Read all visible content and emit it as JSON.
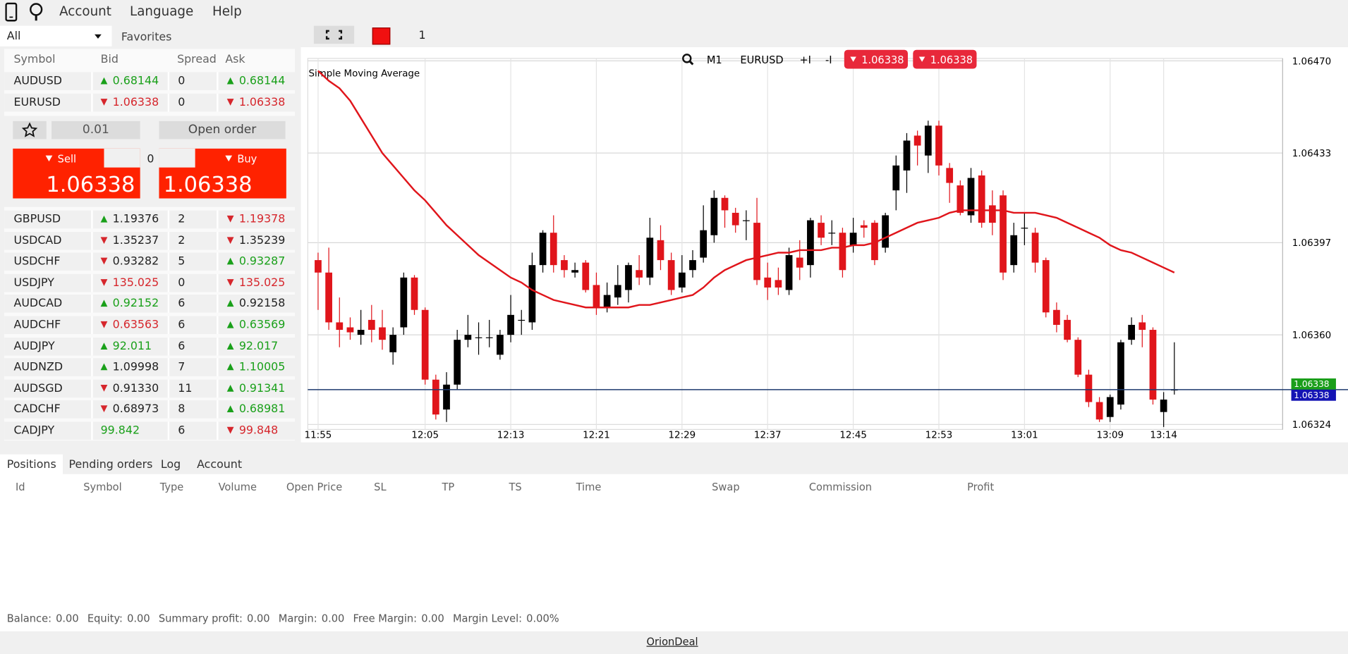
{
  "menu": [
    "Account",
    "Language",
    "Help"
  ],
  "toolbar": {
    "symbol_filter": "All",
    "favorites": "Favorites",
    "count": "1"
  },
  "watchlist": {
    "columns": [
      "Symbol",
      "Bid",
      "Spread",
      "Ask"
    ],
    "rows": [
      {
        "symbol": "AUDUSD",
        "bid": "0.68144",
        "bid_dir": "up",
        "bid_color": "#1aa01a",
        "spread": "0",
        "ask": "0.68144",
        "ask_dir": "up",
        "ask_color": "#1aa01a"
      },
      {
        "symbol": "EURUSD",
        "bid": "1.06338",
        "bid_dir": "down",
        "bid_color": "#d6262c",
        "spread": "0",
        "ask": "1.06338",
        "ask_dir": "down",
        "ask_color": "#d6262c"
      },
      {
        "symbol": "GBPUSD",
        "bid": "1.19376",
        "bid_dir": "up",
        "bid_color": "#222222",
        "spread": "2",
        "ask": "1.19378",
        "ask_dir": "down",
        "ask_color": "#d6262c"
      },
      {
        "symbol": "USDCAD",
        "bid": "1.35237",
        "bid_dir": "down",
        "bid_color": "#222222",
        "spread": "2",
        "ask": "1.35239",
        "ask_dir": "down",
        "ask_color": "#222222"
      },
      {
        "symbol": "USDCHF",
        "bid": "0.93282",
        "bid_dir": "down",
        "bid_color": "#222222",
        "spread": "5",
        "ask": "0.93287",
        "ask_dir": "up",
        "ask_color": "#1aa01a"
      },
      {
        "symbol": "USDJPY",
        "bid": "135.025",
        "bid_dir": "down",
        "bid_color": "#d6262c",
        "spread": "0",
        "ask": "135.025",
        "ask_dir": "down",
        "ask_color": "#d6262c"
      },
      {
        "symbol": "AUDCAD",
        "bid": "0.92152",
        "bid_dir": "up",
        "bid_color": "#1aa01a",
        "spread": "6",
        "ask": "0.92158",
        "ask_dir": "up",
        "ask_color": "#222222"
      },
      {
        "symbol": "AUDCHF",
        "bid": "0.63563",
        "bid_dir": "down",
        "bid_color": "#d6262c",
        "spread": "6",
        "ask": "0.63569",
        "ask_dir": "up",
        "ask_color": "#1aa01a"
      },
      {
        "symbol": "AUDJPY",
        "bid": "92.011",
        "bid_dir": "up",
        "bid_color": "#1aa01a",
        "spread": "6",
        "ask": "92.017",
        "ask_dir": "up",
        "ask_color": "#1aa01a"
      },
      {
        "symbol": "AUDNZD",
        "bid": "1.09998",
        "bid_dir": "up",
        "bid_color": "#222222",
        "spread": "7",
        "ask": "1.10005",
        "ask_dir": "up",
        "ask_color": "#1aa01a"
      },
      {
        "symbol": "AUDSGD",
        "bid": "0.91330",
        "bid_dir": "down",
        "bid_color": "#222222",
        "spread": "11",
        "ask": "0.91341",
        "ask_dir": "up",
        "ask_color": "#1aa01a"
      },
      {
        "symbol": "CADCHF",
        "bid": "0.68973",
        "bid_dir": "down",
        "bid_color": "#222222",
        "spread": "8",
        "ask": "0.68981",
        "ask_dir": "up",
        "ask_color": "#1aa01a"
      },
      {
        "symbol": "CADJPY",
        "bid": "99.842",
        "bid_dir": "none",
        "bid_color": "#1aa01a",
        "spread": "6",
        "ask": "99.848",
        "ask_dir": "down",
        "ask_color": "#d6262c"
      }
    ]
  },
  "order_panel": {
    "volume": "0.01",
    "open_order": "Open order",
    "sell": "Sell",
    "buy": "Buy",
    "sell_price": "1.06338",
    "buy_price": "1.06338",
    "spread": "0"
  },
  "chart_toolbar": {
    "timeframe": "M1",
    "symbol": "EURUSD",
    "zoom_in": "+I",
    "zoom_out": "-I",
    "bid": "1.06338",
    "ask": "1.06338"
  },
  "chart_data": {
    "type": "candlestick",
    "x": [
      "11:55",
      "11:56",
      "11:57",
      "11:58",
      "11:59",
      "12:00",
      "12:01",
      "12:02",
      "12:03",
      "12:04",
      "12:05",
      "12:06",
      "12:07",
      "12:08",
      "12:09",
      "12:10",
      "12:11",
      "12:12",
      "12:13",
      "12:14",
      "12:15",
      "12:16",
      "12:17",
      "12:18",
      "12:19",
      "12:20",
      "12:21",
      "12:22",
      "12:23",
      "12:24",
      "12:25",
      "12:26",
      "12:27",
      "12:28",
      "12:29",
      "12:30",
      "12:31",
      "12:32",
      "12:33",
      "12:34",
      "12:35",
      "12:36",
      "12:37",
      "12:38",
      "12:39",
      "12:40",
      "12:41",
      "12:42",
      "12:43",
      "12:44",
      "12:45",
      "12:46",
      "12:47",
      "12:48",
      "12:49",
      "12:50",
      "12:51",
      "12:52",
      "12:53",
      "12:54",
      "12:55",
      "12:56",
      "12:57",
      "12:58",
      "12:59",
      "13:00",
      "13:01",
      "13:02",
      "13:03",
      "13:04",
      "13:05",
      "13:06",
      "13:07",
      "13:08",
      "13:09",
      "13:10",
      "13:11",
      "13:12",
      "13:13",
      "13:14",
      "13:15"
    ],
    "open": [
      1.0639,
      1.06385,
      1.06365,
      1.06363,
      1.0636,
      1.06366,
      1.06363,
      1.06353,
      1.06363,
      1.06383,
      1.0637,
      1.06342,
      1.0633,
      1.0634,
      1.06358,
      1.06359,
      1.06359,
      1.06352,
      1.0636,
      1.06366,
      1.06365,
      1.06388,
      1.06401,
      1.0639,
      1.06385,
      1.06389,
      1.0638,
      1.06371,
      1.06375,
      1.06378,
      1.06386,
      1.06383,
      1.06398,
      1.0639,
      1.06379,
      1.06386,
      1.06391,
      1.064,
      1.06415,
      1.06409,
      1.06406,
      1.06405,
      1.06383,
      1.06382,
      1.06378,
      1.06391,
      1.06388,
      1.06405,
      1.06401,
      1.06401,
      1.06396,
      1.06404,
      1.06405,
      1.06395,
      1.06418,
      1.06426,
      1.0644,
      1.06432,
      1.06444,
      1.06427,
      1.0642,
      1.06408,
      1.06424,
      1.06412,
      1.06416,
      1.06388,
      1.06403,
      1.06401,
      1.0639,
      1.0637,
      1.06366,
      1.06358,
      1.06344,
      1.06333,
      1.06327,
      1.06332,
      1.06358,
      1.06365,
      1.06362,
      1.06329,
      1.06338
    ],
    "high": [
      1.06393,
      1.06395,
      1.06375,
      1.06367,
      1.0637,
      1.06372,
      1.0637,
      1.06363,
      1.06385,
      1.06384,
      1.06371,
      1.06344,
      1.06345,
      1.06362,
      1.06368,
      1.06365,
      1.06366,
      1.06362,
      1.06376,
      1.0637,
      1.06393,
      1.06402,
      1.06408,
      1.06392,
      1.06389,
      1.0639,
      1.06385,
      1.06381,
      1.06388,
      1.06389,
      1.06392,
      1.06407,
      1.06404,
      1.06393,
      1.06392,
      1.06394,
      1.06412,
      1.06418,
      1.06416,
      1.06411,
      1.0641,
      1.06415,
      1.06389,
      1.06387,
      1.06395,
      1.06398,
      1.06407,
      1.06408,
      1.06406,
      1.06403,
      1.06407,
      1.06406,
      1.06406,
      1.06409,
      1.06432,
      1.06441,
      1.06442,
      1.06446,
      1.06446,
      1.06429,
      1.06422,
      1.06427,
      1.06426,
      1.06418,
      1.06418,
      1.06405,
      1.06409,
      1.06403,
      1.06391,
      1.06373,
      1.06368,
      1.06359,
      1.06346,
      1.06335,
      1.06336,
      1.06358,
      1.06367,
      1.06368,
      1.06363,
      1.06337,
      1.06357
    ],
    "low": [
      1.0637,
      1.06362,
      1.06355,
      1.06358,
      1.06356,
      1.06357,
      1.06354,
      1.06348,
      1.0636,
      1.06368,
      1.0634,
      1.06326,
      1.06325,
      1.06338,
      1.06355,
      1.06352,
      1.06355,
      1.0635,
      1.06357,
      1.0636,
      1.06362,
      1.06385,
      1.06385,
      1.06383,
      1.06383,
      1.06377,
      1.06368,
      1.06369,
      1.06372,
      1.06373,
      1.0638,
      1.0638,
      1.06386,
      1.06376,
      1.06377,
      1.06383,
      1.06389,
      1.06397,
      1.06403,
      1.06401,
      1.06398,
      1.0638,
      1.06374,
      1.06376,
      1.06376,
      1.06382,
      1.06383,
      1.06396,
      1.06396,
      1.06383,
      1.06393,
      1.06399,
      1.06388,
      1.06393,
      1.0641,
      1.06417,
      1.06428,
      1.06425,
      1.06424,
      1.06413,
      1.06408,
      1.06405,
      1.06403,
      1.064,
      1.06382,
      1.06385,
      1.06396,
      1.06385,
      1.06367,
      1.06361,
      1.06357,
      1.06343,
      1.06331,
      1.06325,
      1.06325,
      1.0633,
      1.06356,
      1.06355,
      1.06332,
      1.06323,
      1.06336
    ],
    "close": [
      1.06385,
      1.06365,
      1.06362,
      1.06361,
      1.06362,
      1.06362,
      1.06358,
      1.0636,
      1.06383,
      1.0637,
      1.06342,
      1.06328,
      1.0634,
      1.06358,
      1.0636,
      1.06359,
      1.06359,
      1.0636,
      1.06368,
      1.06366,
      1.06388,
      1.06401,
      1.06388,
      1.06386,
      1.06386,
      1.06378,
      1.06371,
      1.06376,
      1.0638,
      1.06388,
      1.06383,
      1.06399,
      1.0639,
      1.06378,
      1.06385,
      1.0639,
      1.06402,
      1.06415,
      1.0641,
      1.06404,
      1.06406,
      1.06382,
      1.06379,
      1.06379,
      1.06392,
      1.06387,
      1.06406,
      1.06399,
      1.06401,
      1.06386,
      1.06401,
      1.06403,
      1.0639,
      1.06408,
      1.06428,
      1.06438,
      1.06436,
      1.06444,
      1.06428,
      1.06421,
      1.06409,
      1.06423,
      1.06405,
      1.06405,
      1.06385,
      1.064,
      1.06403,
      1.06389,
      1.06369,
      1.06364,
      1.06358,
      1.06344,
      1.06333,
      1.06326,
      1.06335,
      1.06357,
      1.06364,
      1.06362,
      1.06334,
      1.06334,
      1.06338
    ],
    "up_color": "#000000",
    "down_color": "#e0151b",
    "sma": {
      "name": "Simple Moving Average",
      "color": "#e0151b",
      "values": [
        1.06466,
        1.06462,
        1.06459,
        1.06454,
        1.06447,
        1.0644,
        1.06433,
        1.06428,
        1.06423,
        1.06418,
        1.06414,
        1.06409,
        1.06404,
        1.064,
        1.06396,
        1.06392,
        1.06389,
        1.06386,
        1.06383,
        1.06381,
        1.06378,
        1.06376,
        1.06374,
        1.06373,
        1.06372,
        1.06371,
        1.06371,
        1.06371,
        1.06371,
        1.06371,
        1.06372,
        1.06372,
        1.06373,
        1.06374,
        1.06375,
        1.06376,
        1.06379,
        1.06383,
        1.06386,
        1.06388,
        1.0639,
        1.06391,
        1.06392,
        1.06393,
        1.06393,
        1.06394,
        1.06394,
        1.06394,
        1.06395,
        1.06395,
        1.06396,
        1.06396,
        1.06397,
        1.06399,
        1.06401,
        1.06403,
        1.06405,
        1.06406,
        1.06407,
        1.06409,
        1.0641,
        1.0641,
        1.0641,
        1.0641,
        1.0641,
        1.06409,
        1.06409,
        1.06409,
        1.06408,
        1.06407,
        1.06405,
        1.06403,
        1.06401,
        1.06399,
        1.06396,
        1.06394,
        1.06393,
        1.06391,
        1.06389,
        1.06387,
        1.06385
      ]
    },
    "ylim": [
      1.06322,
      1.06471
    ],
    "yticks": [
      {
        "value": 1.0647,
        "label": "1.06470"
      },
      1.06433,
      1.06397,
      {
        "value": 1.0636,
        "label": "1.06360"
      },
      1.06324
    ],
    "xticks": [
      "11:55",
      "12:05",
      "12:13",
      "12:21",
      "12:29",
      "12:37",
      "12:45",
      "12:53",
      "13:01",
      "13:09",
      "13:14"
    ],
    "grid": true,
    "price_lines": [
      {
        "value": 1.06338,
        "label": "1.06338",
        "color": "#1a9e1a"
      },
      {
        "value": 1.06338,
        "label": "1.06338",
        "color": "#1414b4"
      }
    ]
  },
  "bottom_tabs": [
    "Positions",
    "Pending orders",
    "Log",
    "Account"
  ],
  "positions_columns": [
    "Id",
    "Symbol",
    "Type",
    "Volume",
    "Open Price",
    "SL",
    "TP",
    "TS",
    "Time",
    "Swap",
    "Commission",
    "Profit"
  ],
  "summary": [
    {
      "label": "Balance:",
      "value": "0.00"
    },
    {
      "label": "Equity:",
      "value": "0.00"
    },
    {
      "label": "Summary profit:",
      "value": "0.00"
    },
    {
      "label": "Margin:",
      "value": "0.00"
    },
    {
      "label": "Free Margin:",
      "value": "0.00"
    },
    {
      "label": "Margin Level:",
      "value": "0.00%"
    }
  ],
  "footer": "OrionDeal"
}
